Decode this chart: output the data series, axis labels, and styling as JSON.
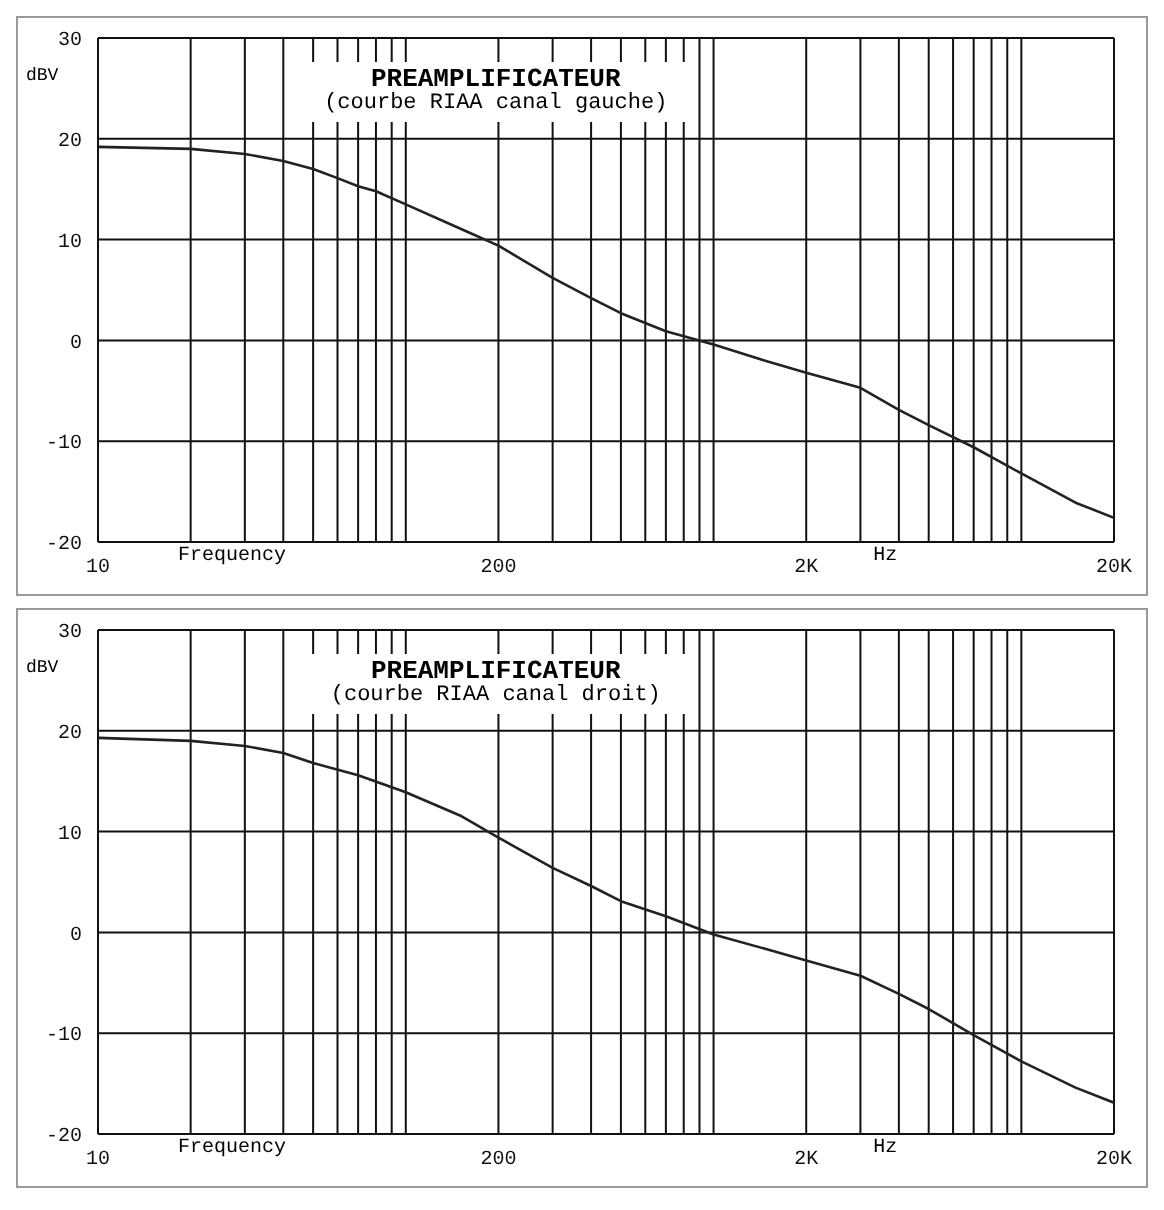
{
  "chart_data": [
    {
      "type": "line",
      "title": "PREAMPLIFICATEUR",
      "subtitle": "(courbe RIAA canal gauche)",
      "xlabel": "Frequency",
      "ylabel": "dBV",
      "annotations": [
        "Hz"
      ],
      "log": "x",
      "grid": true,
      "marker": "none",
      "line_style": "solid",
      "x": [
        10,
        20,
        30,
        40,
        50,
        60,
        70,
        80,
        100,
        150,
        200,
        300,
        400,
        500,
        700,
        1000,
        1500,
        2000,
        3000,
        4000,
        5000,
        7000,
        10000,
        15000,
        20000
      ],
      "series": [
        {
          "color": "#222222",
          "values": [
            19.2,
            19.0,
            18.5,
            17.8,
            17.0,
            16.1,
            15.3,
            14.8,
            13.5,
            11.1,
            9.4,
            6.2,
            4.2,
            2.7,
            0.9,
            -0.4,
            -2.1,
            -3.2,
            -4.7,
            -6.9,
            -8.4,
            -10.6,
            -13.2,
            -16.1,
            -17.6
          ]
        }
      ],
      "xlim": [
        10,
        20000
      ],
      "xticks": [
        {
          "value": 10,
          "label": "10"
        },
        {
          "value": 20,
          "label": null
        },
        {
          "value": 30,
          "label": null
        },
        {
          "value": 40,
          "label": null
        },
        {
          "value": 50,
          "label": null
        },
        {
          "value": 60,
          "label": null
        },
        {
          "value": 70,
          "label": null
        },
        {
          "value": 80,
          "label": null
        },
        {
          "value": 90,
          "label": null
        },
        {
          "value": 100,
          "label": null
        },
        {
          "value": 200,
          "label": "200"
        },
        {
          "value": 300,
          "label": null
        },
        {
          "value": 400,
          "label": null
        },
        {
          "value": 500,
          "label": null
        },
        {
          "value": 600,
          "label": null
        },
        {
          "value": 700,
          "label": null
        },
        {
          "value": 800,
          "label": null
        },
        {
          "value": 900,
          "label": null
        },
        {
          "value": 1000,
          "label": null
        },
        {
          "value": 2000,
          "label": "2K"
        },
        {
          "value": 3000,
          "label": null
        },
        {
          "value": 4000,
          "label": null
        },
        {
          "value": 5000,
          "label": null
        },
        {
          "value": 6000,
          "label": null
        },
        {
          "value": 7000,
          "label": null
        },
        {
          "value": 8000,
          "label": null
        },
        {
          "value": 9000,
          "label": null
        },
        {
          "value": 10000,
          "label": null
        },
        {
          "value": 20000,
          "label": "20K"
        }
      ],
      "ylim": [
        -20,
        30
      ],
      "yticks": [
        -20,
        -10,
        0,
        10,
        20,
        30
      ]
    },
    {
      "type": "line",
      "title": "PREAMPLIFICATEUR",
      "subtitle": "(courbe RIAA canal droit)",
      "xlabel": "Frequency",
      "ylabel": "dBV",
      "annotations": [
        "Hz"
      ],
      "log": "x",
      "grid": true,
      "marker": "none",
      "line_style": "solid",
      "x": [
        10,
        20,
        30,
        40,
        50,
        70,
        100,
        150,
        200,
        300,
        400,
        500,
        700,
        1000,
        1500,
        2000,
        3000,
        4000,
        5000,
        7000,
        10000,
        15000,
        20000
      ],
      "series": [
        {
          "color": "#222222",
          "values": [
            19.3,
            19.0,
            18.5,
            17.8,
            16.8,
            15.6,
            13.9,
            11.6,
            9.4,
            6.4,
            4.6,
            3.1,
            1.6,
            -0.2,
            -1.7,
            -2.8,
            -4.3,
            -6.1,
            -7.6,
            -10.2,
            -12.8,
            -15.4,
            -16.9
          ]
        }
      ],
      "xlim": [
        10,
        20000
      ],
      "xticks": [
        {
          "value": 10,
          "label": "10"
        },
        {
          "value": 20,
          "label": null
        },
        {
          "value": 30,
          "label": null
        },
        {
          "value": 40,
          "label": null
        },
        {
          "value": 50,
          "label": null
        },
        {
          "value": 60,
          "label": null
        },
        {
          "value": 70,
          "label": null
        },
        {
          "value": 80,
          "label": null
        },
        {
          "value": 90,
          "label": null
        },
        {
          "value": 100,
          "label": null
        },
        {
          "value": 200,
          "label": "200"
        },
        {
          "value": 300,
          "label": null
        },
        {
          "value": 400,
          "label": null
        },
        {
          "value": 500,
          "label": null
        },
        {
          "value": 600,
          "label": null
        },
        {
          "value": 700,
          "label": null
        },
        {
          "value": 800,
          "label": null
        },
        {
          "value": 900,
          "label": null
        },
        {
          "value": 1000,
          "label": null
        },
        {
          "value": 2000,
          "label": "2K"
        },
        {
          "value": 3000,
          "label": null
        },
        {
          "value": 4000,
          "label": null
        },
        {
          "value": 5000,
          "label": null
        },
        {
          "value": 6000,
          "label": null
        },
        {
          "value": 7000,
          "label": null
        },
        {
          "value": 8000,
          "label": null
        },
        {
          "value": 9000,
          "label": null
        },
        {
          "value": 10000,
          "label": null
        },
        {
          "value": 20000,
          "label": "20K"
        }
      ],
      "ylim": [
        -20,
        30
      ],
      "yticks": [
        -20,
        -10,
        0,
        10,
        20,
        30
      ]
    }
  ]
}
